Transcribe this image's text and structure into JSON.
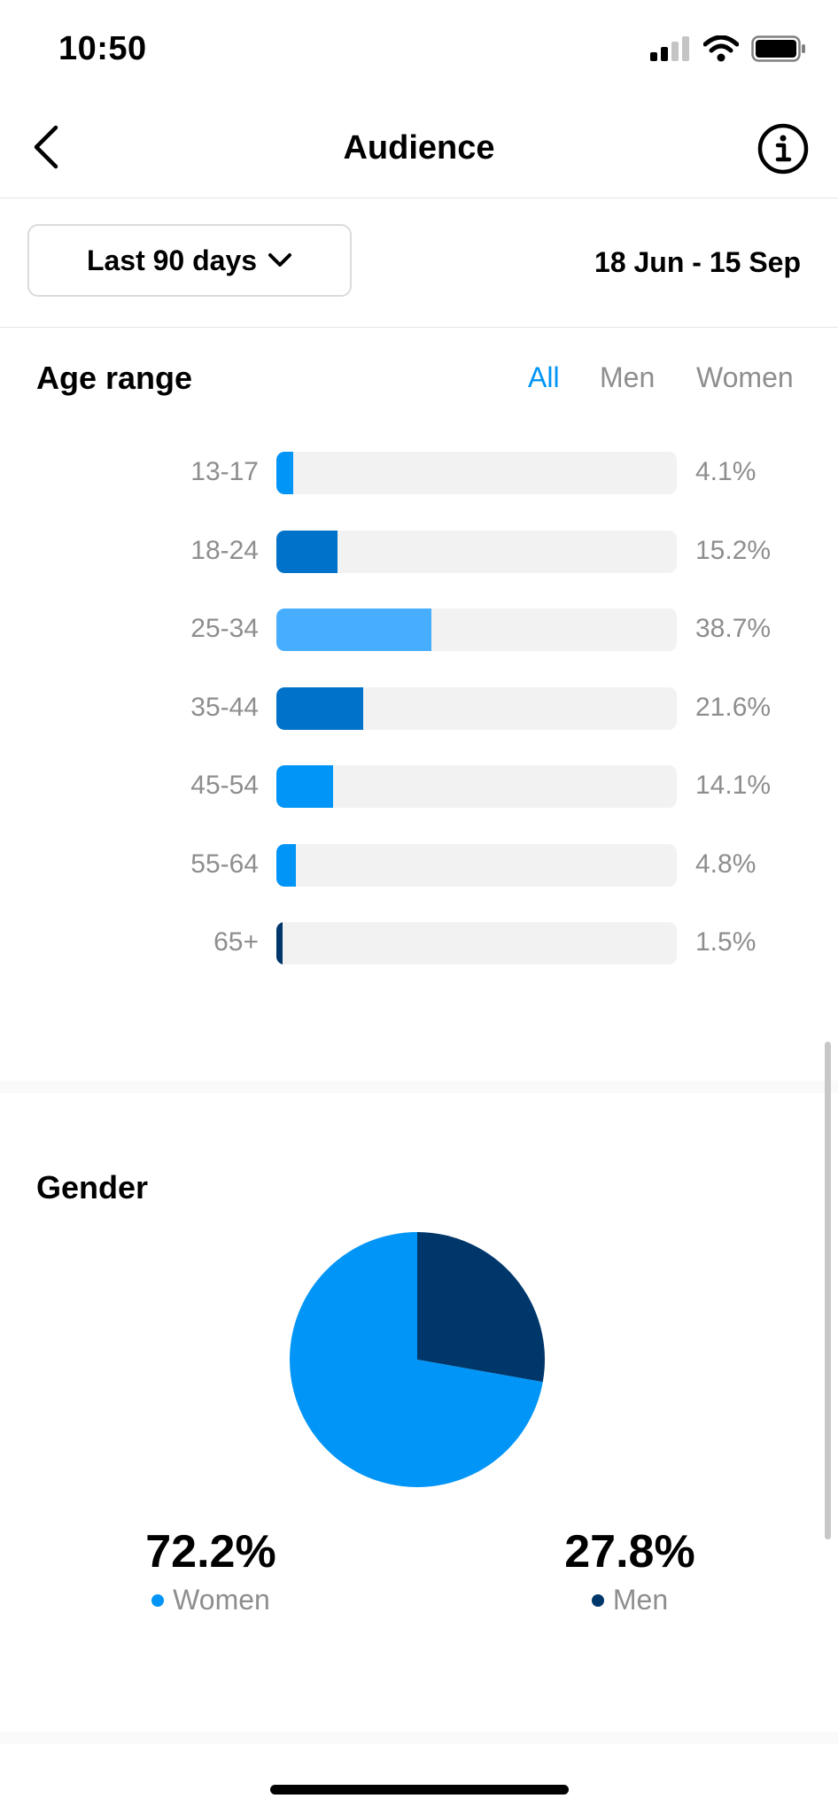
{
  "status_bar": {
    "time": "10:50"
  },
  "header": {
    "title": "Audience"
  },
  "filters": {
    "range_label": "Last 90 days",
    "date_range": "18 Jun - 15 Sep"
  },
  "age_section": {
    "title": "Age range",
    "tabs": [
      {
        "label": "All",
        "active": true
      },
      {
        "label": "Men",
        "active": false
      },
      {
        "label": "Women",
        "active": false
      }
    ]
  },
  "chart_data": [
    {
      "type": "bar",
      "title": "Age range",
      "categories": [
        "13-17",
        "18-24",
        "25-34",
        "35-44",
        "45-54",
        "55-64",
        "65+"
      ],
      "values": [
        4.1,
        15.2,
        38.7,
        21.6,
        14.1,
        4.8,
        1.5
      ],
      "value_labels": [
        "4.1%",
        "15.2%",
        "38.7%",
        "21.6%",
        "14.1%",
        "4.8%",
        "1.5%"
      ],
      "colors": [
        "#0095f6",
        "#0072c9",
        "#47aeff",
        "#0072c9",
        "#0095f6",
        "#0095f6",
        "#00376b"
      ],
      "ylim": [
        0,
        100
      ]
    },
    {
      "type": "pie",
      "title": "Gender",
      "categories": [
        "Women",
        "Men"
      ],
      "values": [
        72.2,
        27.8
      ],
      "value_labels": [
        "72.2%",
        "27.8%"
      ],
      "colors": [
        "#0095f6",
        "#00376b"
      ]
    }
  ],
  "gender_section": {
    "title": "Gender",
    "women": {
      "pct": "72.2%",
      "label": "Women",
      "color": "#0095f6"
    },
    "men": {
      "pct": "27.8%",
      "label": "Men",
      "color": "#00376b"
    }
  },
  "icons": {
    "back": "chevron-left-icon",
    "info": "info-icon",
    "dropdown": "chevron-down-icon"
  }
}
